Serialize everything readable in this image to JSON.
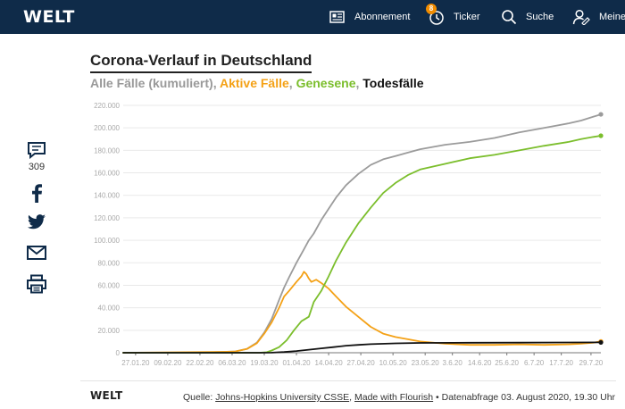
{
  "header": {
    "logo": "WELT",
    "nav": {
      "abonnement": "Abonnement",
      "ticker": "Ticker",
      "ticker_badge": "8",
      "suche": "Suche",
      "meine": "Meine"
    }
  },
  "social": {
    "comments_count": "309"
  },
  "chart_data": {
    "type": "line",
    "title": "Corona-Verlauf in Deutschland",
    "subtitle": {
      "all": "Alle Fälle (kumuliert)",
      "active": "Aktive Fälle",
      "recovered": "Genesene",
      "deaths": "Todesfälle",
      "sep1": ", ",
      "sep2": ", ",
      "sep3": ", "
    },
    "ylim": [
      0,
      220000
    ],
    "yticks": [
      0,
      20000,
      40000,
      60000,
      80000,
      100000,
      120000,
      140000,
      160000,
      180000,
      200000,
      220000
    ],
    "ytick_labels": [
      "0",
      "20.000",
      "40.000",
      "60.000",
      "80.000",
      "100.000",
      "120.000",
      "140.000",
      "160.000",
      "180.000",
      "200.000",
      "220.000"
    ],
    "xlim_days": [
      0,
      193
    ],
    "xtick_labels": [
      "27.01.20",
      "09.02.20",
      "22.02.20",
      "06.03.20",
      "19.03.20",
      "01.04.20",
      "14.04.20",
      "27.04.20",
      "10.05.20",
      "23.05.20",
      "3.6.20",
      "14.6.20",
      "25.6.20",
      "6.7.20",
      "17.7.20",
      "29.7.20"
    ],
    "xtick_days": [
      5,
      18,
      31,
      44,
      57,
      70,
      83,
      96,
      109,
      122,
      133,
      144,
      155,
      166,
      177,
      189
    ],
    "series": [
      {
        "name": "Alle Fälle (kumuliert)",
        "color": "#9b9b9b",
        "x": [
          0,
          30,
          40,
          45,
          50,
          54,
          57,
          60,
          63,
          65,
          67,
          70,
          73,
          75,
          77,
          80,
          83,
          86,
          90,
          95,
          100,
          105,
          110,
          115,
          120,
          130,
          140,
          150,
          160,
          170,
          180,
          185,
          190,
          193
        ],
        "values": [
          0,
          30,
          800,
          1000,
          3500,
          9000,
          18000,
          30000,
          47000,
          58000,
          67000,
          80000,
          92000,
          100000,
          106000,
          118000,
          128000,
          138000,
          149000,
          159000,
          167000,
          172000,
          175000,
          178000,
          181000,
          185000,
          187500,
          191000,
          196000,
          200000,
          204000,
          206500,
          210000,
          212000
        ]
      },
      {
        "name": "Aktive Fälle",
        "color": "#f4a116",
        "x": [
          0,
          40,
          45,
          50,
          54,
          57,
          60,
          63,
          65,
          67,
          70,
          72,
          73,
          74,
          75,
          76,
          78,
          80,
          83,
          86,
          90,
          95,
          100,
          105,
          110,
          115,
          120,
          130,
          140,
          150,
          160,
          170,
          180,
          185,
          190,
          193
        ],
        "values": [
          0,
          800,
          1000,
          3300,
          8500,
          17000,
          27000,
          40000,
          50000,
          55000,
          63000,
          68000,
          72000,
          70000,
          66000,
          63000,
          65000,
          62000,
          57000,
          50000,
          41000,
          32000,
          23000,
          17000,
          14000,
          12000,
          10000,
          8000,
          7000,
          7000,
          7500,
          7000,
          7500,
          8000,
          9000,
          10000
        ]
      },
      {
        "name": "Genesene",
        "color": "#7bbe2c",
        "x": [
          0,
          50,
          55,
          58,
          60,
          63,
          66,
          69,
          72,
          75,
          77,
          80,
          83,
          86,
          90,
          95,
          100,
          105,
          110,
          115,
          120,
          130,
          140,
          150,
          160,
          170,
          180,
          185,
          190,
          193
        ],
        "values": [
          0,
          0,
          0,
          500,
          2000,
          5000,
          11000,
          20000,
          28000,
          32000,
          45000,
          55000,
          68000,
          82000,
          98000,
          115000,
          129000,
          142000,
          151000,
          158000,
          163000,
          168000,
          173000,
          176000,
          180000,
          184000,
          187500,
          190000,
          192000,
          193000
        ]
      },
      {
        "name": "Todesfälle",
        "color": "#111111",
        "x": [
          0,
          55,
          60,
          65,
          70,
          75,
          80,
          85,
          90,
          95,
          100,
          110,
          120,
          140,
          160,
          180,
          193
        ],
        "values": [
          0,
          0,
          100,
          600,
          1500,
          2700,
          3900,
          5000,
          6300,
          7000,
          7600,
          8300,
          8700,
          8900,
          9000,
          9100,
          9200
        ]
      }
    ]
  },
  "footer": {
    "logo": "WELT",
    "source_prefix": "Quelle: ",
    "source_link1": "Johns-Hopkins University CSSE",
    "source_mid": ", ",
    "source_link2": "Made with Flourish",
    "source_suffix": " • Datenabfrage 03. August 2020, 19.30 Uhr"
  },
  "colors": {
    "header_bg": "#0f2b49",
    "grid": "#e9e9e9",
    "tick_label": "#aaaaaa",
    "axis": "#777777"
  }
}
